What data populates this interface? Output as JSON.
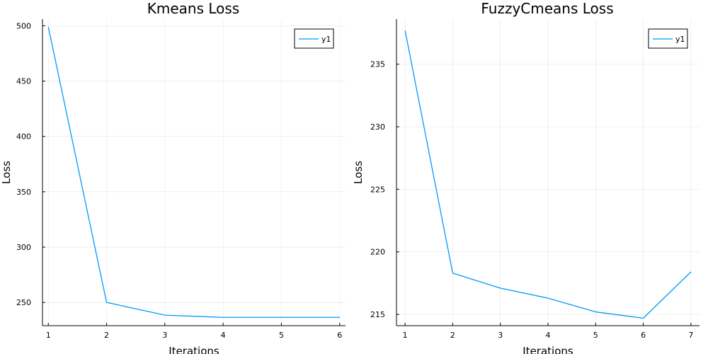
{
  "chart_data": [
    {
      "type": "line",
      "title": "Kmeans Loss",
      "xlabel": "Iterations",
      "ylabel": "Loss",
      "x": [
        1,
        2,
        3,
        4,
        5,
        6
      ],
      "xticks": [
        1,
        2,
        3,
        4,
        5,
        6
      ],
      "yticks": [
        250,
        300,
        350,
        400,
        450,
        500
      ],
      "xlim": [
        0.9,
        6.1
      ],
      "ylim": [
        229,
        506
      ],
      "grid": true,
      "legend_position": "top-right",
      "series": [
        {
          "name": "y1",
          "color": "#009af9",
          "values": [
            499,
            250,
            238.5,
            236.5,
            236.5,
            236.5
          ]
        }
      ]
    },
    {
      "type": "line",
      "title": "FuzzyCmeans Loss",
      "xlabel": "Iterations",
      "ylabel": "Loss",
      "x": [
        1,
        2,
        3,
        4,
        5,
        6,
        7
      ],
      "xticks": [
        1,
        2,
        3,
        4,
        5,
        6,
        7
      ],
      "yticks": [
        215,
        220,
        225,
        230,
        235
      ],
      "xlim": [
        0.82,
        7.18
      ],
      "ylim": [
        214.1,
        238.6
      ],
      "grid": true,
      "legend_position": "top-right",
      "series": [
        {
          "name": "y1",
          "color": "#009af9",
          "values": [
            237.7,
            218.3,
            217.1,
            216.3,
            215.2,
            214.7,
            218.4
          ]
        }
      ]
    }
  ]
}
